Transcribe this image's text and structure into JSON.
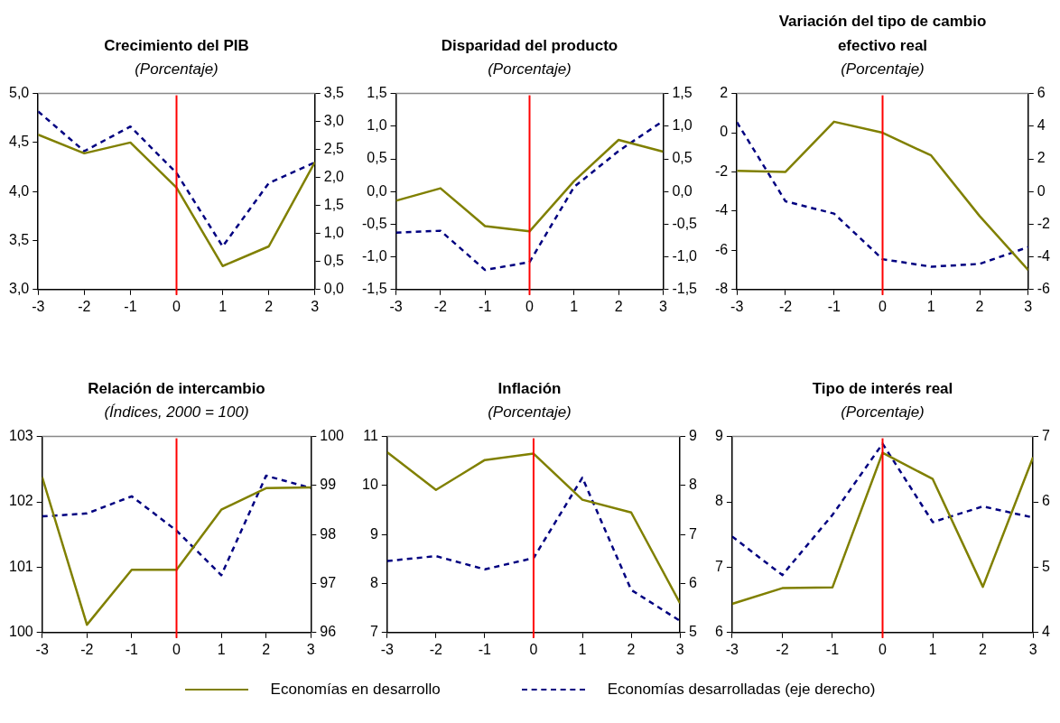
{
  "chart_data": [
    {
      "type": "line",
      "title": "Crecimiento del PIB",
      "subtitle": "(Porcentaje)",
      "x": [
        -3,
        -2,
        -1,
        0,
        1,
        2,
        3
      ],
      "xlim": [
        -3,
        3
      ],
      "xticks": [
        -3,
        -2,
        -1,
        0,
        1,
        2,
        3
      ],
      "ylim": [
        3,
        5
      ],
      "yticks": [
        {
          "value": 3,
          "label": "3,0"
        },
        {
          "value": 3.5,
          "label": "3,5"
        },
        {
          "value": 4,
          "label": "4,0"
        },
        {
          "value": 4.5,
          "label": "4,5"
        },
        {
          "value": 5,
          "label": "5,0"
        }
      ],
      "y2lim": [
        0,
        3.5
      ],
      "y2ticks": [
        {
          "value": 0,
          "label": "0,0"
        },
        {
          "value": 0.5,
          "label": "0,5"
        },
        {
          "value": 1,
          "label": "1,0"
        },
        {
          "value": 1.5,
          "label": "1,5"
        },
        {
          "value": 2,
          "label": "2,0"
        },
        {
          "value": 2.5,
          "label": "2,5"
        },
        {
          "value": 3,
          "label": "3,0"
        },
        {
          "value": 3.5,
          "label": "3,5"
        }
      ],
      "series": [
        {
          "name": "Economías en desarrollo",
          "color": "#808000",
          "line_style": "solid",
          "values": [
            4.58,
            4.39,
            4.5,
            4.04,
            3.24,
            3.44,
            4.3
          ]
        },
        {
          "name": "Economías desarrolladas (eje derecho)",
          "color": "#000080",
          "line_style": "dashed",
          "axis": "y2",
          "values": [
            3.18,
            2.47,
            2.91,
            2.08,
            0.77,
            1.9,
            2.27
          ]
        }
      ],
      "ref_lines": [
        {
          "axis": "x",
          "value": 0,
          "color": "#ff0000"
        }
      ],
      "legend": "bottom"
    },
    {
      "type": "line",
      "title": "Disparidad del producto",
      "subtitle": "(Porcentaje)",
      "x": [
        -3,
        -2,
        -1,
        0,
        1,
        2,
        3
      ],
      "xlim": [
        -3,
        3
      ],
      "xticks": [
        -3,
        -2,
        -1,
        0,
        1,
        2,
        3
      ],
      "ylim": [
        -1.5,
        1.5
      ],
      "yticks": [
        {
          "value": -1.5,
          "label": "-1,5"
        },
        {
          "value": -1,
          "label": "-1,0"
        },
        {
          "value": -0.5,
          "label": "-0,5"
        },
        {
          "value": 0,
          "label": "0,0"
        },
        {
          "value": 0.5,
          "label": "0,5"
        },
        {
          "value": 1,
          "label": "1,0"
        },
        {
          "value": 1.5,
          "label": "1,5"
        }
      ],
      "y2lim": [
        -1.5,
        1.5
      ],
      "y2ticks": [
        {
          "value": -1.5,
          "label": "-1,5"
        },
        {
          "value": -1,
          "label": "-1,0"
        },
        {
          "value": -0.5,
          "label": "-0,5"
        },
        {
          "value": 0,
          "label": "0,0"
        },
        {
          "value": 0.5,
          "label": "0,5"
        },
        {
          "value": 1,
          "label": "1,0"
        },
        {
          "value": 1.5,
          "label": "1,5"
        }
      ],
      "series": [
        {
          "color": "#808000",
          "line_style": "solid",
          "values": [
            -0.14,
            0.05,
            -0.53,
            -0.61,
            0.16,
            0.79,
            0.61
          ]
        },
        {
          "color": "#000080",
          "line_style": "dashed",
          "axis": "y2",
          "values": [
            -0.63,
            -0.6,
            -1.2,
            -1.08,
            0.07,
            0.62,
            1.08
          ]
        }
      ],
      "ref_lines": [
        {
          "axis": "x",
          "value": 0,
          "color": "#ff0000"
        }
      ]
    },
    {
      "type": "line",
      "title": "Variación del tipo de cambio efectivo real",
      "subtitle": "(Porcentaje)",
      "x": [
        -3,
        -2,
        -1,
        0,
        1,
        2,
        3
      ],
      "xlim": [
        -3,
        3
      ],
      "xticks": [
        -3,
        -2,
        -1,
        0,
        1,
        2,
        3
      ],
      "ylim": [
        -8,
        2
      ],
      "yticks": [
        -8,
        -6,
        -4,
        -2,
        0,
        2
      ],
      "y2lim": [
        -6,
        6
      ],
      "y2ticks": [
        -6,
        -4,
        -2,
        0,
        2,
        4,
        6
      ],
      "series": [
        {
          "color": "#808000",
          "line_style": "solid",
          "values": [
            -1.94,
            -2.0,
            0.56,
            0.0,
            -1.16,
            -4.25,
            -7.0
          ]
        },
        {
          "color": "#000080",
          "line_style": "dashed",
          "axis": "y2",
          "values": [
            4.24,
            -0.6,
            -1.35,
            -4.14,
            -4.6,
            -4.43,
            -3.4
          ]
        }
      ],
      "ref_lines": [
        {
          "axis": "x",
          "value": 0,
          "color": "#ff0000"
        }
      ]
    },
    {
      "type": "line",
      "title": "Relación de intercambio",
      "subtitle": "(Índices, 2000 = 100)",
      "x": [
        -3,
        -2,
        -1,
        0,
        1,
        2,
        3
      ],
      "xlim": [
        -3,
        3
      ],
      "xticks": [
        -3,
        -2,
        -1,
        0,
        1,
        2,
        3
      ],
      "ylim": [
        100,
        103
      ],
      "yticks": [
        100,
        101,
        102,
        103
      ],
      "y2lim": [
        96,
        100
      ],
      "y2ticks": [
        96,
        97,
        98,
        99,
        100
      ],
      "series": [
        {
          "color": "#808000",
          "line_style": "solid",
          "values": [
            102.38,
            100.12,
            100.96,
            100.96,
            101.88,
            102.21,
            102.22
          ]
        },
        {
          "color": "#000080",
          "line_style": "dashed",
          "axis": "y2",
          "values": [
            98.37,
            98.43,
            98.78,
            98.08,
            97.17,
            99.2,
            98.95
          ]
        }
      ],
      "ref_lines": [
        {
          "axis": "x",
          "value": 0,
          "color": "#ff0000"
        }
      ]
    },
    {
      "type": "line",
      "title": "Inflación",
      "subtitle": "(Porcentaje)",
      "x": [
        -3,
        -2,
        -1,
        0,
        1,
        2,
        3
      ],
      "xlim": [
        -3,
        3
      ],
      "xticks": [
        -3,
        -2,
        -1,
        0,
        1,
        2,
        3
      ],
      "ylim": [
        7,
        11
      ],
      "yticks": [
        7,
        8,
        9,
        10,
        11
      ],
      "y2lim": [
        5,
        9
      ],
      "y2ticks": [
        5,
        6,
        7,
        8,
        9
      ],
      "series": [
        {
          "color": "#808000",
          "line_style": "solid",
          "values": [
            10.68,
            9.91,
            10.52,
            10.65,
            9.71,
            9.45,
            7.6
          ]
        },
        {
          "color": "#000080",
          "line_style": "dashed",
          "axis": "y2",
          "values": [
            6.46,
            6.56,
            6.29,
            6.52,
            8.16,
            5.87,
            5.24
          ]
        }
      ],
      "ref_lines": [
        {
          "axis": "x",
          "value": 0,
          "color": "#ff0000"
        }
      ]
    },
    {
      "type": "line",
      "title": "Tipo de interés real",
      "subtitle": "(Porcentaje)",
      "x": [
        -3,
        -2,
        -1,
        0,
        1,
        2,
        3
      ],
      "xlim": [
        -3,
        3
      ],
      "xticks": [
        -3,
        -2,
        -1,
        0,
        1,
        2,
        3
      ],
      "ylim": [
        6,
        9
      ],
      "yticks": [
        6,
        7,
        8,
        9
      ],
      "y2lim": [
        4,
        7
      ],
      "y2ticks": [
        4,
        5,
        6,
        7
      ],
      "series": [
        {
          "color": "#808000",
          "line_style": "solid",
          "values": [
            6.44,
            6.68,
            6.69,
            8.75,
            8.35,
            6.7,
            8.68
          ]
        },
        {
          "color": "#000080",
          "line_style": "dashed",
          "axis": "y2",
          "values": [
            5.47,
            4.88,
            5.8,
            6.89,
            5.69,
            5.93,
            5.76
          ]
        }
      ],
      "ref_lines": [
        {
          "axis": "x",
          "value": 0,
          "color": "#ff0000"
        }
      ]
    }
  ]
}
